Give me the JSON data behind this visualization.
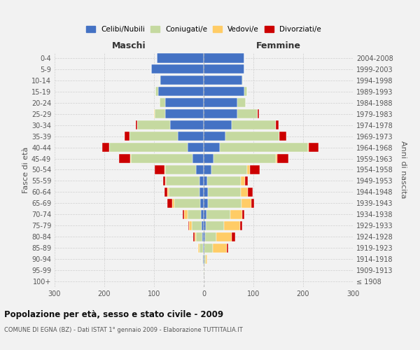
{
  "age_groups": [
    "100+",
    "95-99",
    "90-94",
    "85-89",
    "80-84",
    "75-79",
    "70-74",
    "65-69",
    "60-64",
    "55-59",
    "50-54",
    "45-49",
    "40-44",
    "35-39",
    "30-34",
    "25-29",
    "20-24",
    "15-19",
    "10-14",
    "5-9",
    "0-4"
  ],
  "birth_years": [
    "≤ 1908",
    "1909-1913",
    "1914-1918",
    "1919-1923",
    "1924-1928",
    "1929-1933",
    "1934-1938",
    "1939-1943",
    "1944-1948",
    "1949-1953",
    "1954-1958",
    "1959-1963",
    "1964-1968",
    "1969-1973",
    "1974-1978",
    "1979-1983",
    "1984-1988",
    "1989-1993",
    "1994-1998",
    "1999-2003",
    "2004-2008"
  ],
  "male_celibi": [
    0,
    0,
    1,
    2,
    3,
    4,
    5,
    7,
    8,
    9,
    16,
    22,
    32,
    52,
    67,
    77,
    77,
    92,
    87,
    105,
    95
  ],
  "male_coniugati": [
    0,
    0,
    2,
    6,
    12,
    20,
    28,
    52,
    62,
    67,
    62,
    125,
    158,
    98,
    67,
    22,
    12,
    5,
    2,
    0,
    0
  ],
  "male_vedovi": [
    0,
    0,
    0,
    3,
    4,
    5,
    6,
    5,
    3,
    2,
    1,
    1,
    0,
    0,
    0,
    1,
    0,
    0,
    0,
    0,
    0
  ],
  "male_divorziati": [
    0,
    0,
    0,
    0,
    2,
    2,
    3,
    9,
    6,
    4,
    20,
    22,
    14,
    9,
    2,
    0,
    0,
    0,
    0,
    0,
    0
  ],
  "female_celibi": [
    0,
    0,
    1,
    2,
    3,
    4,
    6,
    9,
    8,
    7,
    16,
    20,
    32,
    44,
    57,
    67,
    67,
    82,
    77,
    82,
    82
  ],
  "female_coniugati": [
    0,
    1,
    3,
    17,
    22,
    37,
    47,
    67,
    67,
    67,
    72,
    125,
    178,
    108,
    88,
    42,
    17,
    5,
    2,
    0,
    0
  ],
  "female_vedovi": [
    0,
    0,
    3,
    27,
    32,
    32,
    24,
    20,
    14,
    9,
    5,
    3,
    1,
    0,
    0,
    0,
    0,
    0,
    0,
    0,
    0
  ],
  "female_divorziati": [
    0,
    0,
    0,
    3,
    6,
    5,
    5,
    6,
    9,
    6,
    20,
    22,
    20,
    14,
    6,
    2,
    0,
    0,
    0,
    0,
    0
  ],
  "color_celibi": "#4472C4",
  "color_coniugati": "#C5D9A0",
  "color_vedovi": "#FFCC66",
  "color_divorziati": "#CC0000",
  "title": "Popolazione per età, sesso e stato civile - 2009",
  "subtitle": "COMUNE DI EGNA (BZ) - Dati ISTAT 1° gennaio 2009 - Elaborazione TUTTITALIA.IT",
  "xlabel_left": "Maschi",
  "xlabel_right": "Femmine",
  "ylabel_left": "Fasce di età",
  "ylabel_right": "Anni di nascita",
  "xlim": 300,
  "bg_color": "#F2F2F2",
  "grid_color": "#CCCCCC"
}
